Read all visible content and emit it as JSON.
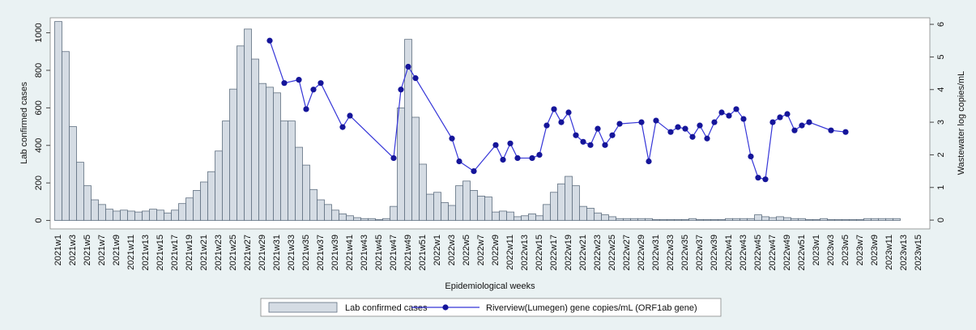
{
  "chart_data": {
    "type": "bar-line",
    "x_label": "Epidemiological weeks",
    "y_label": "Lab confirmed cases",
    "y2_label": "Wastewater log copies/mL",
    "categories": [
      "2021w1",
      null,
      "2021w3",
      null,
      "2021w5",
      null,
      "2021w7",
      null,
      "2021w9",
      null,
      "2021w11",
      null,
      "2021w13",
      null,
      "2021w15",
      null,
      "2021w17",
      null,
      "2021w19",
      null,
      "2021w21",
      null,
      "2021w23",
      null,
      "2021w25",
      null,
      "2021w27",
      null,
      "2021w29",
      null,
      "2021w31",
      null,
      "2021w33",
      null,
      "2021w35",
      null,
      "2021w37",
      null,
      "2021w39",
      null,
      "2021w41",
      null,
      "2021w43",
      null,
      "2021w45",
      null,
      "2021w47",
      null,
      "2021w49",
      null,
      "2021w51",
      null,
      "2022w1",
      null,
      "2022w3",
      null,
      "2022w5",
      null,
      "2022w7",
      null,
      "2022w9",
      null,
      "2022w11",
      null,
      "2022w13",
      null,
      "2022w15",
      null,
      "2022w17",
      null,
      "2022w19",
      null,
      "2022w21",
      null,
      "2022w23",
      null,
      "2022w25",
      null,
      "2022w27",
      null,
      "2022w29",
      null,
      "2022w31",
      null,
      "2022w33",
      null,
      "2022w35",
      null,
      "2022w37",
      null,
      "2022w39",
      null,
      "2022w41",
      null,
      "2022w43",
      null,
      "2022w45",
      null,
      "2022w47",
      null,
      "2022w49",
      null,
      "2022w51",
      null,
      "2023w1",
      null,
      "2023w3",
      null,
      "2023w5",
      null,
      "2023w7",
      null,
      "2023w9",
      null,
      "2023w11",
      null,
      "2023w13",
      null,
      "2023w15"
    ],
    "series": [
      {
        "name": "Lab confirmed cases",
        "kind": "bar",
        "color": "#d5dce4",
        "edge": "#5f6f80",
        "values": [
          1060,
          900,
          500,
          310,
          185,
          110,
          85,
          60,
          50,
          55,
          50,
          45,
          50,
          60,
          55,
          40,
          55,
          90,
          120,
          160,
          205,
          260,
          370,
          530,
          700,
          930,
          1020,
          860,
          730,
          710,
          680,
          530,
          530,
          390,
          295,
          165,
          110,
          85,
          55,
          35,
          25,
          15,
          10,
          10,
          5,
          10,
          75,
          600,
          965,
          550,
          300,
          140,
          150,
          95,
          80,
          185,
          210,
          160,
          130,
          125,
          45,
          50,
          45,
          20,
          25,
          35,
          25,
          85,
          150,
          195,
          235,
          185,
          75,
          65,
          40,
          30,
          20,
          10,
          10,
          10,
          10,
          10,
          5,
          5,
          5,
          5,
          5,
          10,
          5,
          5,
          5,
          5,
          10,
          10,
          10,
          10,
          30,
          20,
          15,
          20,
          15,
          10,
          10,
          5,
          5,
          10,
          5,
          5,
          5,
          5,
          5,
          10,
          10,
          10,
          10,
          10,
          null,
          null,
          null
        ]
      },
      {
        "name": "Riverview(Lumegen) gene copies/mL (ORF1ab gene)",
        "kind": "line",
        "axis": "y2",
        "color": "#3535d8",
        "marker_color": "#15159a",
        "values": [
          null,
          null,
          null,
          null,
          null,
          null,
          null,
          null,
          null,
          null,
          null,
          null,
          null,
          null,
          null,
          null,
          null,
          null,
          null,
          null,
          null,
          null,
          null,
          null,
          null,
          null,
          null,
          null,
          null,
          5.5,
          null,
          4.2,
          null,
          4.3,
          3.4,
          4.0,
          4.2,
          null,
          null,
          2.85,
          3.2,
          null,
          null,
          null,
          null,
          null,
          1.9,
          4.0,
          4.7,
          4.35,
          null,
          null,
          null,
          null,
          2.5,
          1.8,
          null,
          1.5,
          null,
          null,
          2.3,
          1.85,
          2.35,
          1.9,
          null,
          1.9,
          2.0,
          2.9,
          3.4,
          3.0,
          3.3,
          2.6,
          2.4,
          2.3,
          2.8,
          2.3,
          2.6,
          2.95,
          null,
          null,
          3.0,
          1.8,
          3.05,
          null,
          2.7,
          2.85,
          2.8,
          2.55,
          2.9,
          2.5,
          3.0,
          3.3,
          3.2,
          3.4,
          3.1,
          1.95,
          1.3,
          1.25,
          3.0,
          3.15,
          3.25,
          2.75,
          2.9,
          3.0,
          null,
          null,
          2.75,
          null,
          2.7,
          null,
          null,
          null,
          null,
          null,
          null,
          null,
          null,
          null,
          null
        ]
      }
    ],
    "ylim": [
      -45,
      1080
    ],
    "yticks": [
      0,
      200,
      400,
      600,
      800,
      1000
    ],
    "y2lim": [
      -0.27,
      6.2
    ],
    "y2ticks": [
      0,
      1,
      2,
      3,
      4,
      5,
      6
    ],
    "grid": false,
    "legend": "bottom"
  }
}
